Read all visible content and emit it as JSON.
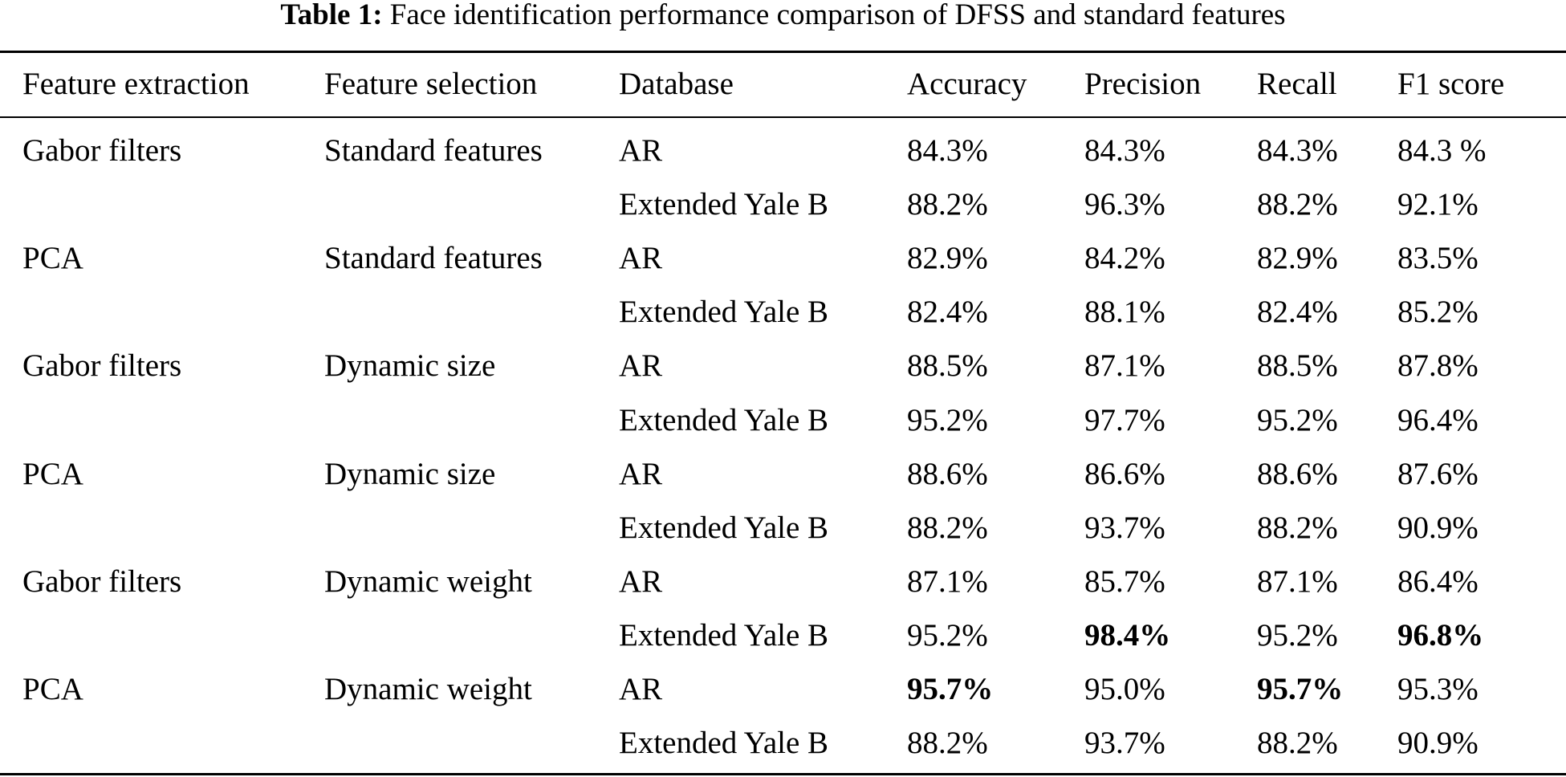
{
  "table": {
    "caption_label": "Table 1:",
    "caption_text": "Face identification performance comparison of DFSS and standard features",
    "columns": [
      "Feature extraction",
      "Feature selection",
      "Database",
      "Accuracy",
      "Precision",
      "Recall",
      "F1 score"
    ],
    "rows": [
      [
        "Gabor filters",
        "Standard features",
        "AR",
        "84.3%",
        "84.3%",
        "84.3%",
        "84.3 %"
      ],
      [
        "",
        "",
        "Extended Yale B",
        "88.2%",
        "96.3%",
        "88.2%",
        "92.1%"
      ],
      [
        "PCA",
        "Standard features",
        "AR",
        "82.9%",
        "84.2%",
        "82.9%",
        "83.5%"
      ],
      [
        "",
        "",
        "Extended Yale B",
        "82.4%",
        "88.1%",
        "82.4%",
        "85.2%"
      ],
      [
        "Gabor filters",
        "Dynamic size",
        "AR",
        "88.5%",
        "87.1%",
        "88.5%",
        "87.8%"
      ],
      [
        "",
        "",
        "Extended Yale B",
        "95.2%",
        "97.7%",
        "95.2%",
        "96.4%"
      ],
      [
        "PCA",
        "Dynamic size",
        "AR",
        "88.6%",
        "86.6%",
        "88.6%",
        "87.6%"
      ],
      [
        "",
        "",
        "Extended Yale B",
        "88.2%",
        "93.7%",
        "88.2%",
        "90.9%"
      ],
      [
        "Gabor filters",
        "Dynamic weight",
        "AR",
        "87.1%",
        "85.7%",
        "87.1%",
        "86.4%"
      ],
      [
        "",
        "",
        "Extended Yale B",
        "95.2%",
        "98.4%",
        "95.2%",
        "96.8%"
      ],
      [
        "PCA",
        "Dynamic weight",
        "AR",
        "95.7%",
        "95.0%",
        "95.7%",
        "95.3%"
      ],
      [
        "",
        "",
        "Extended Yale B",
        "88.2%",
        "93.7%",
        "88.2%",
        "90.9%"
      ]
    ],
    "bold_cells": [
      [
        9,
        4
      ],
      [
        9,
        6
      ],
      [
        10,
        3
      ],
      [
        10,
        5
      ]
    ]
  }
}
